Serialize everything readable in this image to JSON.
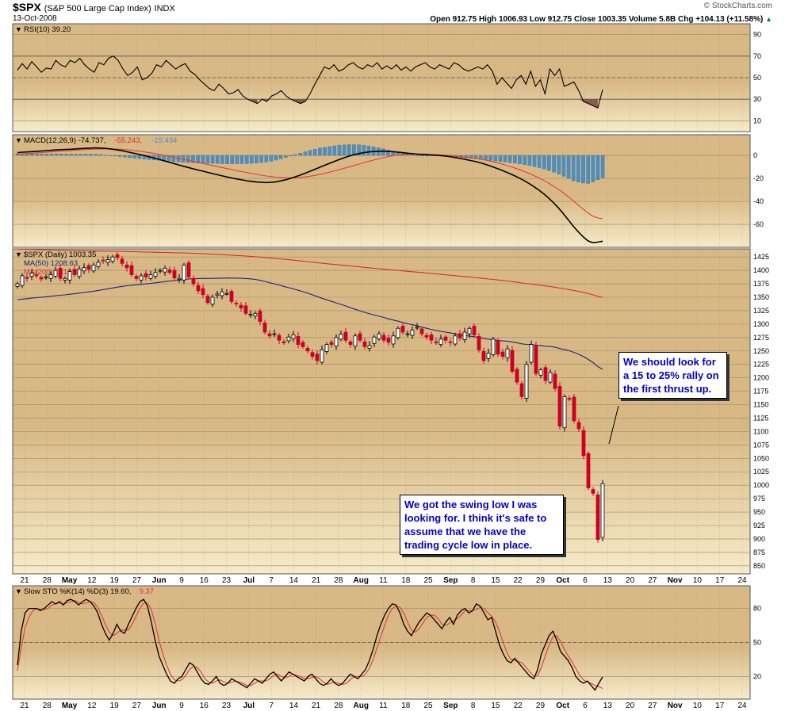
{
  "header": {
    "symbol": "$SPX",
    "name": "(S&P 500 Large Cap Index)",
    "exchange": "INDX",
    "date": "13-Oct-2008",
    "ohlc": "Open 912.75   High 1006.93   Low 912.75   Close 1003.35   Volume 5.8B   Chg +104.13 (+11.58%)",
    "chg_arrow": "▲",
    "credit": "© StockCharts.com"
  },
  "colors": {
    "panel_bg": "#d8b986",
    "panel_bg_light": "#f6ebc9",
    "grid": "#9c8a66",
    "price_up": "#000000",
    "price_down": "#cc0022",
    "ma50": "#1a237e",
    "ma200": "#d32f2f",
    "macd_line": "#000000",
    "signal_line": "#e53935",
    "histogram": "#4a90c8",
    "rsi_fill": "#8b5a4a",
    "note_text": "#0000cc"
  },
  "annotations": {
    "top": "We should look for a 15 to 25% rally on the first thrust up.",
    "bottom": "We got the swing low I was looking for. I think it's safe to assume that we have the trading cycle low in place."
  },
  "chart_data": [
    {
      "type": "line",
      "panel": "rsi",
      "title": "RSI(10) 39.20",
      "legend": [
        {
          "text": "RSI(10) 39.20",
          "color": "#000000"
        }
      ],
      "y_ticks": [
        90,
        70,
        50,
        30,
        10
      ],
      "ylim": [
        0,
        100
      ],
      "overbought": 70,
      "oversold": 30,
      "values": [
        57,
        63,
        58,
        65,
        60,
        55,
        59,
        58,
        66,
        62,
        60,
        66,
        64,
        68,
        62,
        58,
        55,
        64,
        62,
        68,
        70,
        66,
        58,
        52,
        55,
        60,
        48,
        50,
        54,
        62,
        60,
        66,
        62,
        58,
        61,
        63,
        56,
        53,
        48,
        44,
        40,
        38,
        44,
        40,
        35,
        36,
        39,
        33,
        30,
        28,
        26,
        30,
        28,
        33,
        35,
        38,
        33,
        30,
        28,
        26,
        28,
        35,
        44,
        52,
        60,
        58,
        62,
        56,
        58,
        62,
        64,
        60,
        58,
        62,
        60,
        64,
        58,
        61,
        58,
        62,
        57,
        60,
        56,
        60,
        62,
        64,
        60,
        58,
        62,
        60,
        58,
        64,
        62,
        58,
        56,
        58,
        60,
        58,
        62,
        56,
        44,
        50,
        45,
        40,
        48,
        52,
        44,
        56,
        42,
        48,
        35,
        58,
        52,
        58,
        42,
        44,
        46,
        38,
        28,
        26,
        24,
        22,
        39
      ]
    },
    {
      "type": "line",
      "panel": "macd",
      "title": "MACD(12,26,9) -74.737, -55.243, -19.494",
      "legend": [
        {
          "text": "MACD(12,26,9) -74.737,",
          "color": "#000000"
        },
        {
          "text": " -55.243,",
          "color": "#d32f2f"
        },
        {
          "text": " -19.494",
          "color": "#4a90c8"
        }
      ],
      "y_ticks": [
        0,
        -20,
        -40,
        -60
      ],
      "ylim": [
        -80,
        18
      ],
      "series": [
        {
          "name": "MACD",
          "values": [
            2.5,
            2.8,
            3.0,
            3.3,
            3.6,
            3.9,
            4.2,
            4.5,
            4.8,
            5.0,
            5.2,
            5.4,
            5.7,
            6.0,
            6.2,
            6.4,
            6.6,
            6.4,
            6.1,
            5.7,
            5.1,
            4.4,
            3.6,
            2.7,
            1.8,
            0.9,
            -0.1,
            -1.2,
            -2.3,
            -3.4,
            -4.6,
            -5.8,
            -7.0,
            -8.2,
            -9.4,
            -10.5,
            -11.6,
            -12.7,
            -13.7,
            -14.8,
            -15.8,
            -16.8,
            -17.8,
            -18.8,
            -19.7,
            -20.5,
            -21.3,
            -22.0,
            -22.6,
            -23.1,
            -23.4,
            -23.6,
            -23.5,
            -23.0,
            -22.2,
            -21.2,
            -20.0,
            -18.6,
            -17.1,
            -15.5,
            -13.8,
            -12.1,
            -10.3,
            -8.6,
            -6.9,
            -5.2,
            -3.6,
            -2.0,
            -0.6,
            0.6,
            1.6,
            2.4,
            3.0,
            3.4,
            3.6,
            3.7,
            3.6,
            3.3,
            2.9,
            2.4,
            1.9,
            1.5,
            1.1,
            0.8,
            0.6,
            0.4,
            0.2,
            -0.2,
            -0.7,
            -1.3,
            -2.0,
            -2.8,
            -3.6,
            -4.5,
            -5.4,
            -6.5,
            -7.8,
            -9.2,
            -10.8,
            -12.4,
            -14.1,
            -15.9,
            -17.8,
            -19.9,
            -22.2,
            -24.7,
            -27.4,
            -30.4,
            -33.7,
            -37.4,
            -41.5,
            -46.0,
            -51.0,
            -56.3,
            -61.7,
            -66.5,
            -70.8,
            -74.4,
            -76.0,
            -75.5,
            -74.7
          ]
        },
        {
          "name": "Signal",
          "values": [
            1.0,
            1.3,
            1.6,
            1.9,
            2.2,
            2.5,
            2.8,
            3.1,
            3.4,
            3.7,
            4.0,
            4.3,
            4.6,
            4.8,
            5.1,
            5.3,
            5.5,
            5.6,
            5.7,
            5.7,
            5.6,
            5.4,
            5.1,
            4.7,
            4.2,
            3.7,
            3.1,
            2.4,
            1.7,
            0.9,
            0.1,
            -0.7,
            -1.6,
            -2.5,
            -3.4,
            -4.3,
            -5.2,
            -6.1,
            -7.0,
            -7.9,
            -8.8,
            -9.7,
            -10.6,
            -11.5,
            -12.4,
            -13.3,
            -14.1,
            -14.9,
            -15.7,
            -16.5,
            -17.2,
            -17.9,
            -18.4,
            -18.9,
            -19.2,
            -19.4,
            -19.5,
            -19.4,
            -19.1,
            -18.7,
            -18.1,
            -17.4,
            -16.6,
            -15.6,
            -14.6,
            -13.5,
            -12.4,
            -11.2,
            -10.0,
            -8.8,
            -7.6,
            -6.4,
            -5.2,
            -4.1,
            -3.0,
            -2.0,
            -1.1,
            -0.3,
            0.3,
            0.8,
            1.1,
            1.3,
            1.3,
            1.2,
            1.0,
            0.8,
            0.6,
            0.4,
            0.1,
            -0.2,
            -0.6,
            -1.0,
            -1.5,
            -2.0,
            -2.6,
            -3.3,
            -4.1,
            -5.0,
            -6.0,
            -7.1,
            -8.3,
            -9.6,
            -11.0,
            -12.5,
            -14.1,
            -15.8,
            -17.7,
            -19.7,
            -21.9,
            -24.3,
            -26.9,
            -29.7,
            -32.8,
            -36.1,
            -39.6,
            -43.2,
            -46.7,
            -50.0,
            -52.9,
            -54.4,
            -55.2
          ]
        }
      ],
      "histogram": [
        1.5,
        1.5,
        1.4,
        1.4,
        1.4,
        1.4,
        1.4,
        1.4,
        1.4,
        1.3,
        1.2,
        1.1,
        1.1,
        1.2,
        1.1,
        1.1,
        1.1,
        0.8,
        0.4,
        0.0,
        -0.5,
        -1.0,
        -1.5,
        -2.0,
        -2.4,
        -2.8,
        -3.2,
        -3.6,
        -4.0,
        -4.3,
        -4.7,
        -5.1,
        -5.4,
        -5.7,
        -6.0,
        -6.2,
        -6.4,
        -6.6,
        -6.7,
        -6.9,
        -7.0,
        -7.1,
        -7.2,
        -7.3,
        -7.3,
        -7.2,
        -7.2,
        -7.1,
        -6.9,
        -6.6,
        -6.2,
        -5.7,
        -5.1,
        -4.1,
        -3.0,
        -1.8,
        -0.5,
        0.8,
        2.0,
        3.2,
        4.3,
        5.3,
        6.3,
        7.0,
        7.7,
        8.3,
        8.8,
        9.2,
        9.4,
        9.4,
        9.2,
        8.8,
        8.2,
        7.5,
        6.6,
        5.7,
        4.7,
        3.6,
        2.6,
        1.6,
        0.8,
        0.2,
        -0.2,
        -0.4,
        -0.4,
        -0.4,
        -0.4,
        -0.6,
        -0.8,
        -1.1,
        -1.4,
        -1.8,
        -2.1,
        -2.5,
        -2.8,
        -3.2,
        -3.7,
        -4.2,
        -4.8,
        -5.3,
        -5.8,
        -6.3,
        -6.7,
        -7.4,
        -8.1,
        -8.9,
        -9.7,
        -10.7,
        -11.8,
        -13.1,
        -14.6,
        -16.3,
        -18.2,
        -20.2,
        -22.1,
        -23.3,
        -24.1,
        -24.4,
        -23.1,
        -21.1,
        -19.5
      ]
    },
    {
      "type": "candlestick",
      "panel": "price",
      "title": "$SPX (Daily) 1003.35",
      "legend": [
        {
          "text": "$SPX (Daily) 1003.35",
          "color": "#000000"
        },
        {
          "text": "MA(50) 1208.63",
          "color": "#1a237e"
        },
        {
          "text": "MA(200) 1312.37",
          "color": "#d32f2f"
        }
      ],
      "y_ticks": [
        1425,
        1400,
        1375,
        1350,
        1325,
        1300,
        1275,
        1250,
        1225,
        1200,
        1175,
        1150,
        1125,
        1100,
        1075,
        1050,
        1025,
        1000,
        975,
        950,
        925,
        900,
        875,
        850
      ],
      "ylim": [
        835,
        1440
      ],
      "close": [
        1375,
        1390,
        1385,
        1395,
        1390,
        1384,
        1388,
        1392,
        1400,
        1385,
        1385,
        1398,
        1392,
        1402,
        1405,
        1402,
        1410,
        1415,
        1418,
        1420,
        1425,
        1424,
        1413,
        1405,
        1392,
        1385,
        1390,
        1388,
        1392,
        1396,
        1400,
        1404,
        1396,
        1386,
        1385,
        1410,
        1388,
        1375,
        1362,
        1355,
        1340,
        1350,
        1356,
        1360,
        1357,
        1342,
        1338,
        1330,
        1320,
        1318,
        1320,
        1305,
        1285,
        1278,
        1282,
        1270,
        1265,
        1276,
        1280,
        1262,
        1258,
        1250,
        1240,
        1232,
        1252,
        1262,
        1262,
        1275,
        1281,
        1270,
        1262,
        1278,
        1270,
        1258,
        1260,
        1276,
        1282,
        1270,
        1266,
        1278,
        1292,
        1285,
        1282,
        1289,
        1294,
        1282,
        1276,
        1270,
        1265,
        1272,
        1270,
        1266,
        1278,
        1274,
        1285,
        1292,
        1280,
        1252,
        1232,
        1246,
        1272,
        1244,
        1240,
        1254,
        1212,
        1192,
        1165,
        1225,
        1262,
        1208,
        1215,
        1195,
        1210,
        1180,
        1110,
        1165,
        1160,
        1120,
        1105,
        1055,
        995,
        985,
        899,
        1003
      ]
    },
    {
      "type": "line",
      "panel": "stochastic",
      "title": "Slow STO %K(14) %D(3) 19.60, 9.37",
      "legend": [
        {
          "text": "Slow STO %K(14) %D(3) 19.60,",
          "color": "#000000"
        },
        {
          "text": " 9.37",
          "color": "#d32f2f"
        }
      ],
      "y_ticks": [
        80,
        50,
        20
      ],
      "ylim": [
        0,
        100
      ],
      "series": [
        {
          "name": "%K",
          "values": [
            30,
            60,
            76,
            80,
            80,
            80,
            78,
            80,
            83,
            86,
            84,
            86,
            83,
            87,
            88,
            86,
            83,
            86,
            88,
            86,
            82,
            76,
            66,
            58,
            52,
            58,
            66,
            60,
            58,
            66,
            73,
            80,
            86,
            88,
            82,
            68,
            52,
            38,
            30,
            22,
            16,
            14,
            18,
            20,
            26,
            32,
            30,
            24,
            18,
            14,
            13,
            16,
            20,
            14,
            12,
            14,
            18,
            16,
            14,
            12,
            10,
            14,
            18,
            16,
            14,
            18,
            22,
            24,
            20,
            16,
            20,
            24,
            22,
            20,
            18,
            16,
            20,
            22,
            18,
            14,
            12,
            14,
            18,
            14,
            12,
            14,
            18,
            22,
            20,
            18,
            22,
            26,
            34,
            44,
            56,
            66,
            74,
            80,
            84,
            83,
            76,
            66,
            60,
            56,
            62,
            68,
            72,
            76,
            74,
            70,
            66,
            62,
            68,
            72,
            66,
            74,
            78,
            80,
            76,
            78,
            84,
            82,
            76,
            70,
            72,
            60,
            48,
            40,
            34,
            32,
            36,
            32,
            28,
            24,
            20,
            18,
            26,
            40,
            48,
            56,
            60,
            52,
            42,
            38,
            34,
            28,
            20,
            16,
            14,
            16,
            12,
            8,
            14,
            19.6
          ]
        },
        {
          "name": "%D",
          "values": [
            25,
            45,
            63,
            72,
            78,
            80,
            79,
            79,
            80,
            83,
            84,
            85,
            84,
            85,
            86,
            87,
            85,
            84,
            85,
            86,
            85,
            81,
            74,
            66,
            59,
            56,
            58,
            61,
            61,
            61,
            66,
            73,
            80,
            85,
            85,
            79,
            67,
            52,
            40,
            30,
            22,
            17,
            16,
            17,
            21,
            26,
            29,
            28,
            24,
            18,
            15,
            14,
            16,
            17,
            15,
            14,
            15,
            16,
            15,
            14,
            12,
            12,
            14,
            16,
            16,
            16,
            18,
            21,
            22,
            20,
            19,
            20,
            22,
            21,
            20,
            18,
            18,
            19,
            20,
            18,
            15,
            13,
            14,
            15,
            14,
            13,
            14,
            17,
            20,
            20,
            20,
            22,
            27,
            35,
            45,
            55,
            65,
            74,
            80,
            82,
            81,
            76,
            68,
            61,
            59,
            62,
            67,
            72,
            74,
            74,
            71,
            66,
            65,
            67,
            69,
            71,
            74,
            78,
            78,
            78,
            79,
            81,
            80,
            76,
            73,
            68,
            60,
            50,
            41,
            35,
            34,
            33,
            32,
            28,
            24,
            20,
            21,
            28,
            38,
            48,
            55,
            56,
            51,
            44,
            38,
            33,
            27,
            21,
            17,
            15,
            14,
            12,
            11,
            9.37
          ]
        }
      ]
    }
  ],
  "x_axis": {
    "ticks": [
      {
        "label": "21",
        "bold": false
      },
      {
        "label": "28",
        "bold": false
      },
      {
        "label": "May",
        "bold": true
      },
      {
        "label": "12",
        "bold": false
      },
      {
        "label": "19",
        "bold": false
      },
      {
        "label": "27",
        "bold": false
      },
      {
        "label": "Jun",
        "bold": true
      },
      {
        "label": "9",
        "bold": false
      },
      {
        "label": "16",
        "bold": false
      },
      {
        "label": "23",
        "bold": false
      },
      {
        "label": "Jul",
        "bold": true
      },
      {
        "label": "7",
        "bold": false
      },
      {
        "label": "14",
        "bold": false
      },
      {
        "label": "21",
        "bold": false
      },
      {
        "label": "28",
        "bold": false
      },
      {
        "label": "Aug",
        "bold": true
      },
      {
        "label": "11",
        "bold": false
      },
      {
        "label": "18",
        "bold": false
      },
      {
        "label": "25",
        "bold": false
      },
      {
        "label": "Sep",
        "bold": true
      },
      {
        "label": "8",
        "bold": false
      },
      {
        "label": "15",
        "bold": false
      },
      {
        "label": "22",
        "bold": false
      },
      {
        "label": "29",
        "bold": false
      },
      {
        "label": "Oct",
        "bold": true
      },
      {
        "label": "6",
        "bold": false
      },
      {
        "label": "13",
        "bold": false
      },
      {
        "label": "20",
        "bold": false
      },
      {
        "label": "27",
        "bold": false
      },
      {
        "label": "Nov",
        "bold": true
      },
      {
        "label": "10",
        "bold": false
      },
      {
        "label": "17",
        "bold": false
      },
      {
        "label": "24",
        "bold": false
      }
    ]
  }
}
